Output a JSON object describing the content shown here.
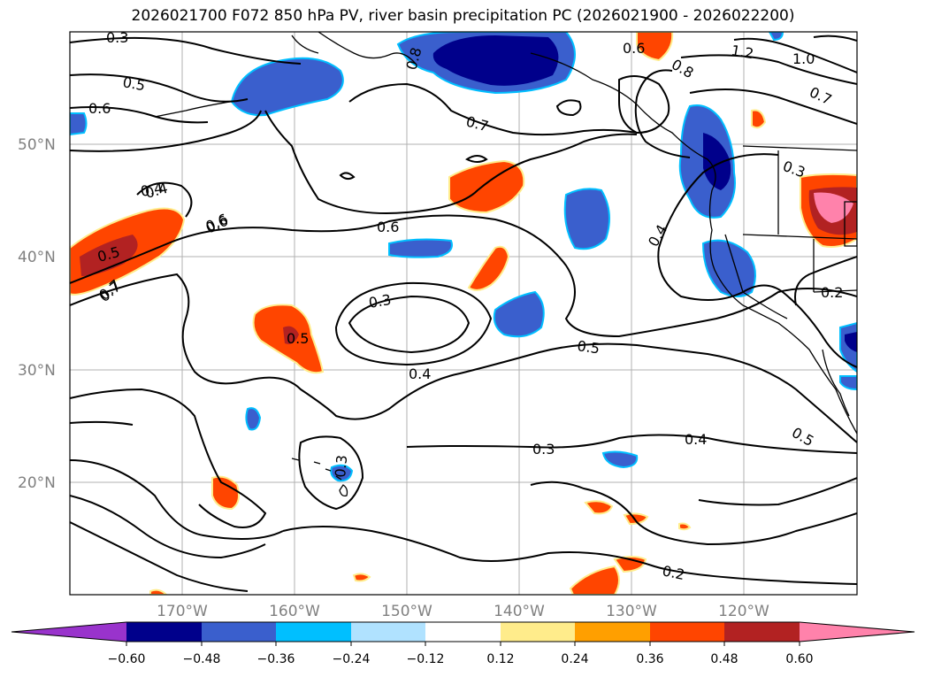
{
  "title": "2026021700 F072 850 hPa PV, river basin precipitation PC (2026021900 - 2026022200)",
  "latitude_labels": [
    "50°N",
    "40°N",
    "30°N",
    "20°N"
  ],
  "longitude_labels": [
    "170°W",
    "160°W",
    "150°W",
    "140°W",
    "130°W",
    "120°W"
  ],
  "contour_labels": [
    "0.3",
    "0.4",
    "0.5",
    "0.6",
    "0.7",
    "0.8",
    "0.6",
    "0.8",
    "1.2",
    "1.0",
    "0.7",
    "0.6",
    "0.7",
    "0.4",
    "0.6",
    "0.6",
    "0.5",
    "0.7",
    "0.3",
    "0.4",
    "0.5",
    "0.5",
    "0.3",
    "0.4",
    "0.3",
    "0.5",
    "0.2",
    "0.4",
    "0.3",
    "0.2"
  ],
  "colorbar": {
    "ticks": [
      "−0.60",
      "−0.48",
      "−0.36",
      "−0.24",
      "−0.12",
      "0.12",
      "0.24",
      "0.36",
      "0.48",
      "0.60"
    ],
    "colors": [
      "#9933cc",
      "#00008b",
      "#3a5fcd",
      "#00bfff",
      "#b0e2ff",
      "#ffffff",
      "#ffec8b",
      "#ff9f00",
      "#ff4500",
      "#b22222",
      "#ff82ab"
    ]
  },
  "chart_data": {
    "type": "map",
    "title": "2026021700 F072 850 hPa PV, river basin precipitation PC (2026021900 - 2026022200)",
    "extent": {
      "lon_min": -180,
      "lon_max": -110,
      "lat_min": 10,
      "lat_max": 60
    },
    "grid": true,
    "contour_levels": [
      0.2,
      0.3,
      0.4,
      0.5,
      0.6,
      0.7,
      0.8,
      1.0,
      1.2
    ],
    "fill_levels": [
      -0.6,
      -0.48,
      -0.36,
      -0.24,
      -0.12,
      0.12,
      0.24,
      0.36,
      0.48,
      0.6
    ]
  }
}
